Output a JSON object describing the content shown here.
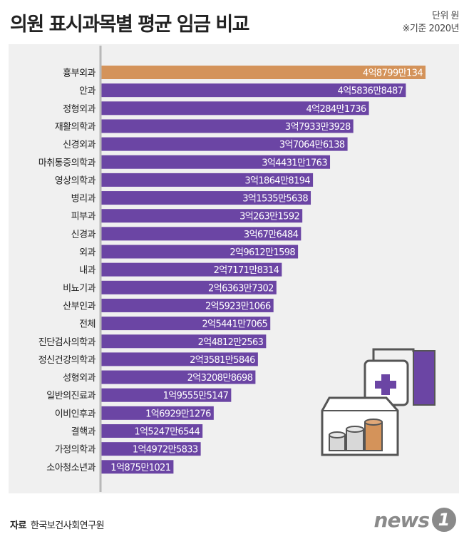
{
  "header": {
    "title": "의원 표시과목별 평균 임금 비교",
    "unit": "단위 원",
    "base_year": "※기준 2020년"
  },
  "source": {
    "label": "자료",
    "org": "한국보건사회연구원"
  },
  "logo": {
    "text": "news",
    "mark": "1"
  },
  "colors": {
    "highlight_bar": "#d4935a",
    "bar": "#6b45a4",
    "panel": "#f0f0f0",
    "axis": "#b8b8b8"
  },
  "icon": "clinic-sign-and-coins-illustration",
  "chart_data": {
    "type": "bar",
    "orientation": "horizontal",
    "categories": [
      "흉부외과",
      "안과",
      "정형외과",
      "재활의학과",
      "신경외과",
      "마취통증의학과",
      "영상의학과",
      "병리과",
      "피부과",
      "신경과",
      "외과",
      "내과",
      "비뇨기과",
      "산부인과",
      "전체",
      "진단검사의학과",
      "정신건강의학과",
      "성형외과",
      "일반의진료과",
      "이비인후과",
      "결핵과",
      "가정의학과",
      "소아청소년과"
    ],
    "values": [
      487990134,
      458368487,
      402841736,
      379333928,
      370646138,
      344311763,
      318648194,
      315355638,
      302631592,
      300676484,
      296121598,
      271718314,
      263637302,
      259231066,
      254417065,
      248122563,
      235815846,
      232088698,
      195555147,
      169291276,
      152476544,
      149725833,
      108751021
    ],
    "value_labels": [
      "4억8799만134",
      "4억5836만8487",
      "4억284만1736",
      "3억7933만3928",
      "3억7064만6138",
      "3억4431만1763",
      "3억1864만8194",
      "3억1535만5638",
      "3억263만1592",
      "3억67만6484",
      "2억9612만1598",
      "2억7171만8314",
      "2억6363만7302",
      "2억5923만1066",
      "2억5441만7065",
      "2억4812만2563",
      "2억3581만5846",
      "2억3208만8698",
      "1억9555만5147",
      "1억6929만1276",
      "1억5247만6544",
      "1억4972만5833",
      "1억875만1021"
    ],
    "highlight_index": 0,
    "ylabel": "",
    "xlabel": ""
  }
}
